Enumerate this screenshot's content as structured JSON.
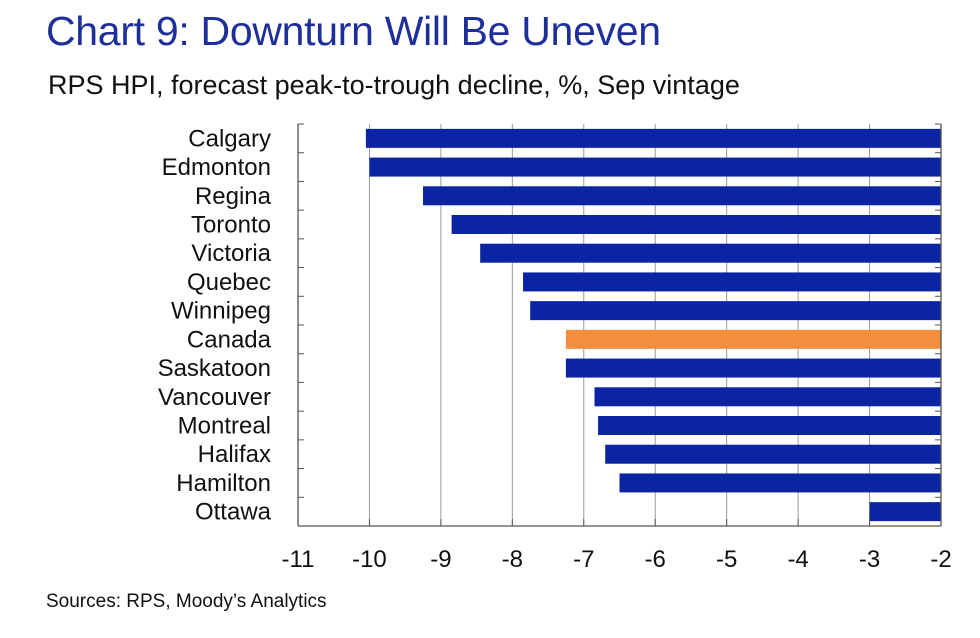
{
  "header": {
    "title": "Chart 9: Downturn Will Be Uneven",
    "subtitle": "RPS HPI, forecast peak-to-trough decline, %, Sep vintage"
  },
  "footer": {
    "source": "Sources: RPS, Moody’s Analytics"
  },
  "colors": {
    "bar": "#0B24A3",
    "highlight": "#F28E3C",
    "title": "#1F2F9A",
    "grid": "#9a9a9a",
    "axis": "#555555"
  },
  "chart_data": {
    "type": "bar",
    "orientation": "horizontal",
    "title": "Chart 9: Downturn Will Be Uneven",
    "subtitle": "RPS HPI, forecast peak-to-trough decline, %, Sep vintage",
    "categories": [
      "Calgary",
      "Edmonton",
      "Regina",
      "Toronto",
      "Victoria",
      "Quebec",
      "Winnipeg",
      "Canada",
      "Saskatoon",
      "Vancouver",
      "Montreal",
      "Halifax",
      "Hamilton",
      "Ottawa"
    ],
    "values": [
      -10.05,
      -10.0,
      -9.25,
      -8.85,
      -8.45,
      -7.85,
      -7.75,
      -7.25,
      -7.25,
      -6.85,
      -6.8,
      -6.7,
      -6.5,
      -3.0
    ],
    "highlight_category": "Canada",
    "xlim": [
      -11,
      -2
    ],
    "xticks": [
      "-11",
      "-10",
      "-9",
      "-8",
      "-7",
      "-6",
      "-5",
      "-4",
      "-3",
      "-2"
    ],
    "xlabel": "",
    "ylabel": "",
    "grid": "vertical",
    "legend": "none"
  }
}
